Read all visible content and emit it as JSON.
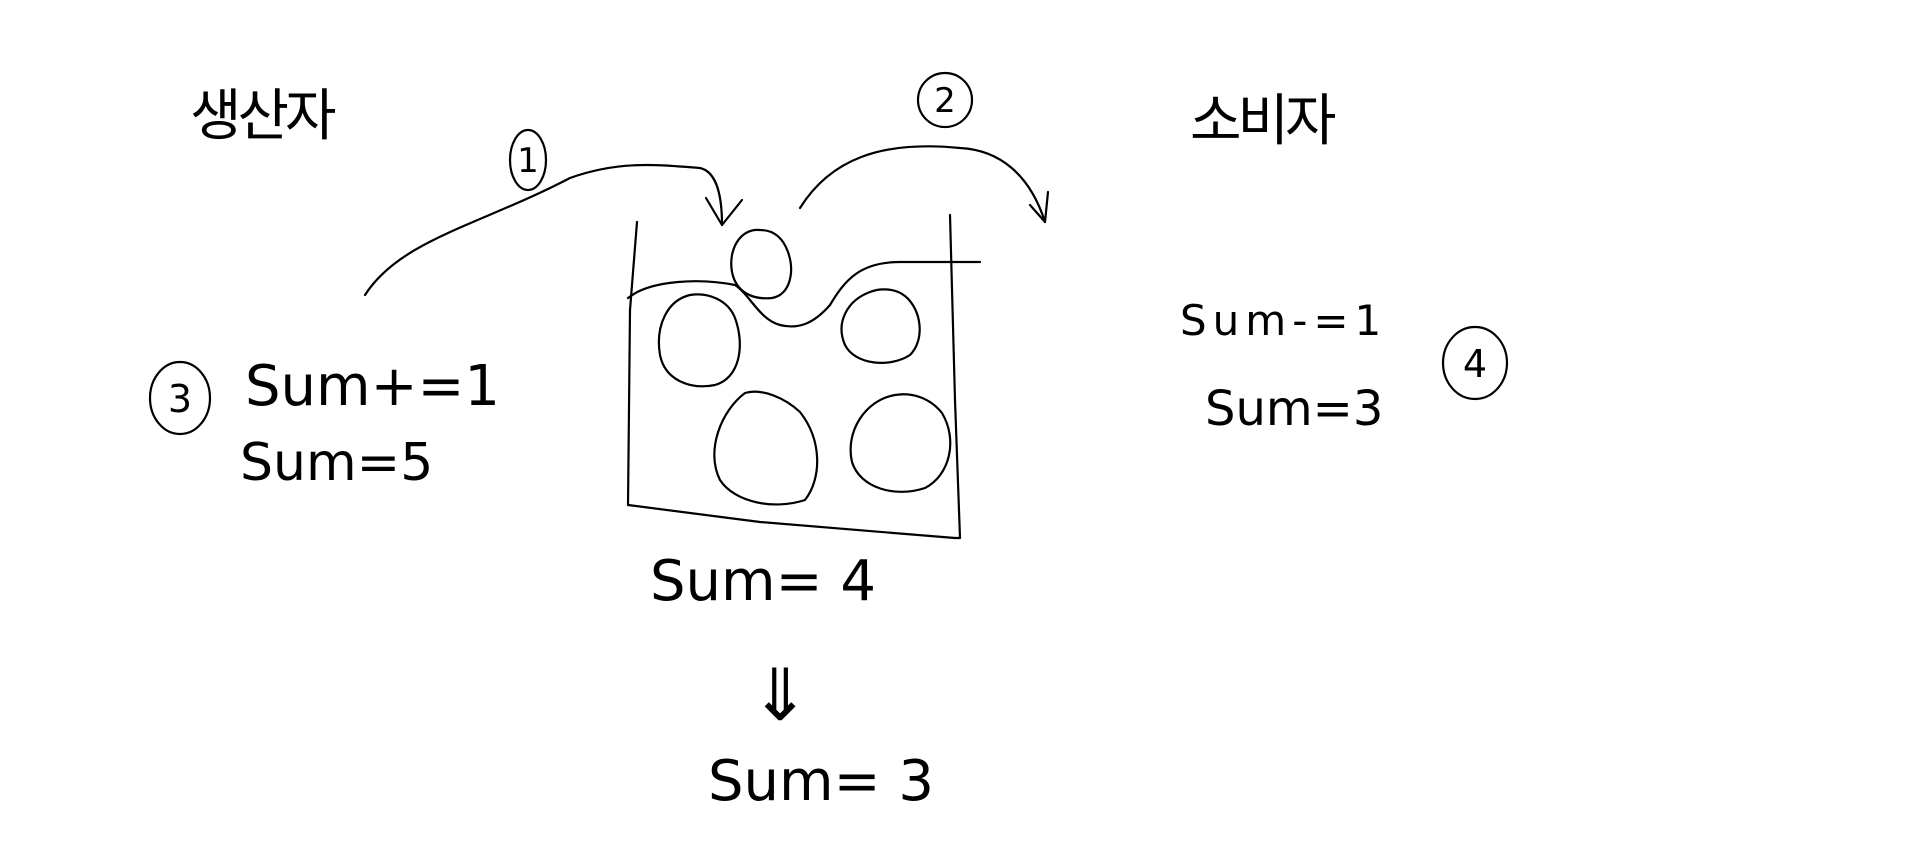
{
  "labels": {
    "producer": "생산자",
    "consumer": "소비자"
  },
  "steps": {
    "one": "1",
    "two": "2",
    "three": "3",
    "four": "4"
  },
  "producer_ops": {
    "increment": "Sum+=1",
    "result": "Sum=5"
  },
  "consumer_ops": {
    "decrement": "Sum-=1",
    "result": "Sum=3"
  },
  "buffer": {
    "sum": "Sum= 4",
    "arrow": "⇓",
    "final_sum": "Sum= 3"
  }
}
